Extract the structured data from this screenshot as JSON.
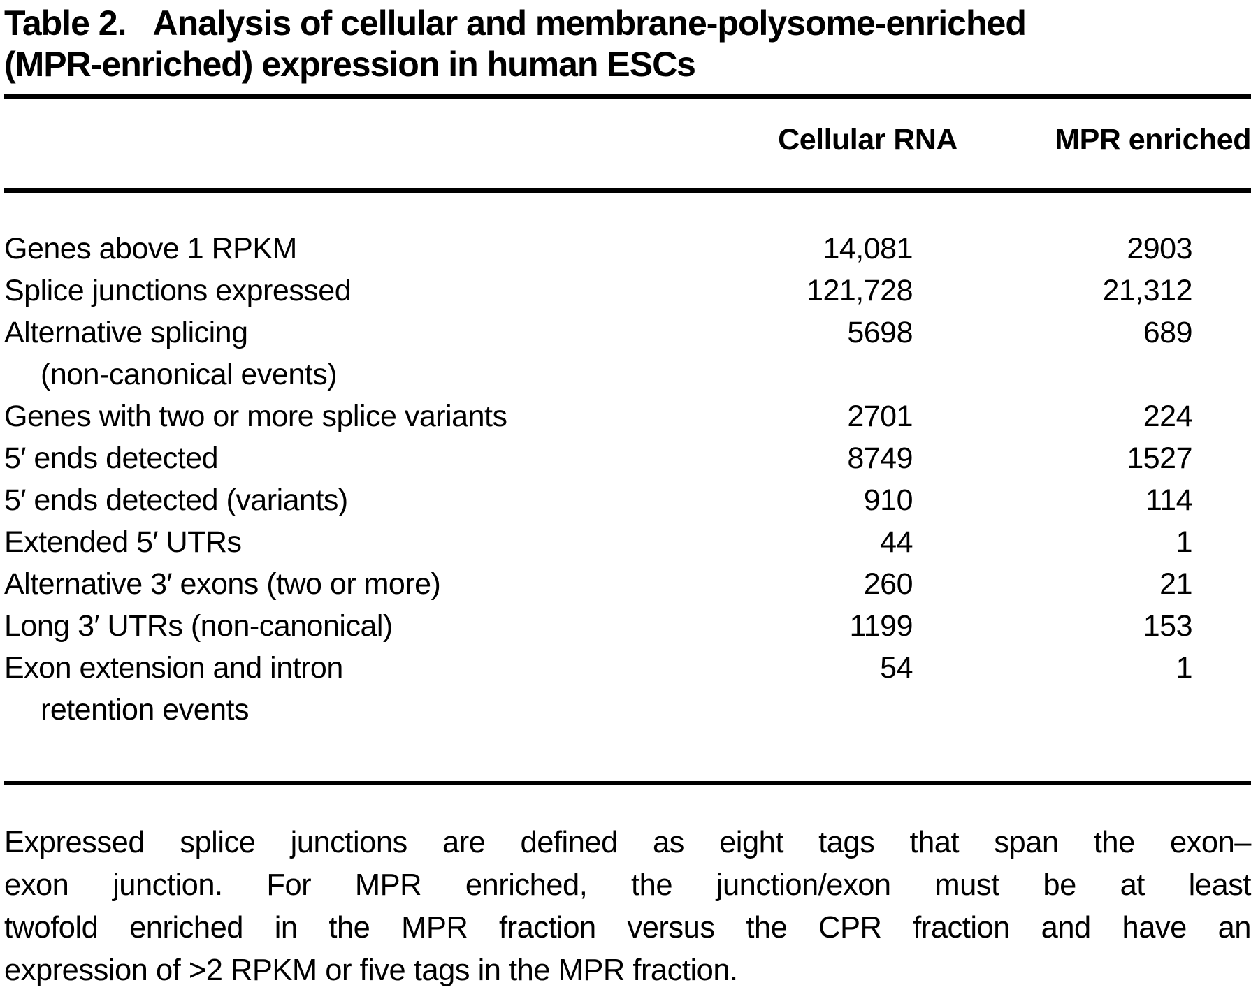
{
  "title": {
    "label": "Table 2.",
    "line1": "Analysis of cellular and membrane-polysome-enriched",
    "line2": "(MPR-enriched) expression in human ESCs"
  },
  "table": {
    "columns": {
      "cellular": "Cellular RNA",
      "mpr": "MPR enriched"
    },
    "rows": [
      {
        "label": "Genes above 1 RPKM",
        "cellular": "14,081",
        "mpr": "2903"
      },
      {
        "label": "Splice junctions expressed",
        "cellular": "121,728",
        "mpr": "21,312"
      },
      {
        "label": "Alternative splicing",
        "label2": "(non-canonical events)",
        "cellular": "5698",
        "mpr": "689"
      },
      {
        "label": "Genes with two or more splice variants",
        "cellular": "2701",
        "mpr": "224"
      },
      {
        "label": "5′ ends detected",
        "cellular": "8749",
        "mpr": "1527"
      },
      {
        "label": "5′ ends detected (variants)",
        "cellular": "910",
        "mpr": "114"
      },
      {
        "label": "Extended 5′ UTRs",
        "cellular": "44",
        "mpr": "1"
      },
      {
        "label": "Alternative 3′ exons (two or more)",
        "cellular": "260",
        "mpr": "21"
      },
      {
        "label": "Long 3′ UTRs (non-canonical)",
        "cellular": "1199",
        "mpr": "153"
      },
      {
        "label": "Exon extension and intron",
        "label2": "retention events",
        "cellular": "54",
        "mpr": "1"
      }
    ]
  },
  "chart_data": {
    "type": "table",
    "title": "Table 2. Analysis of cellular and membrane-polysome-enriched (MPR-enriched) expression in human ESCs",
    "categories": [
      "Genes above 1 RPKM",
      "Splice junctions expressed",
      "Alternative splicing (non-canonical events)",
      "Genes with two or more splice variants",
      "5′ ends detected",
      "5′ ends detected (variants)",
      "Extended 5′ UTRs",
      "Alternative 3′ exons (two or more)",
      "Long 3′ UTRs (non-canonical)",
      "Exon extension and intron retention events"
    ],
    "series": [
      {
        "name": "Cellular RNA",
        "values": [
          14081,
          121728,
          5698,
          2701,
          8749,
          910,
          44,
          260,
          1199,
          54
        ]
      },
      {
        "name": "MPR enriched",
        "values": [
          2903,
          21312,
          689,
          224,
          1527,
          114,
          1,
          21,
          153,
          1
        ]
      }
    ]
  },
  "footnote": {
    "line1": "Expressed splice junctions are defined as eight tags that span the exon–",
    "line2": "exon junction. For MPR enriched, the junction/exon must be at least",
    "line3": "twofold enriched in the MPR fraction versus the CPR fraction and have an",
    "line4": "expression of >2 RPKM or five tags in the MPR fraction."
  },
  "colors": {
    "text": "#000000",
    "background": "#ffffff",
    "rule": "#000000"
  }
}
